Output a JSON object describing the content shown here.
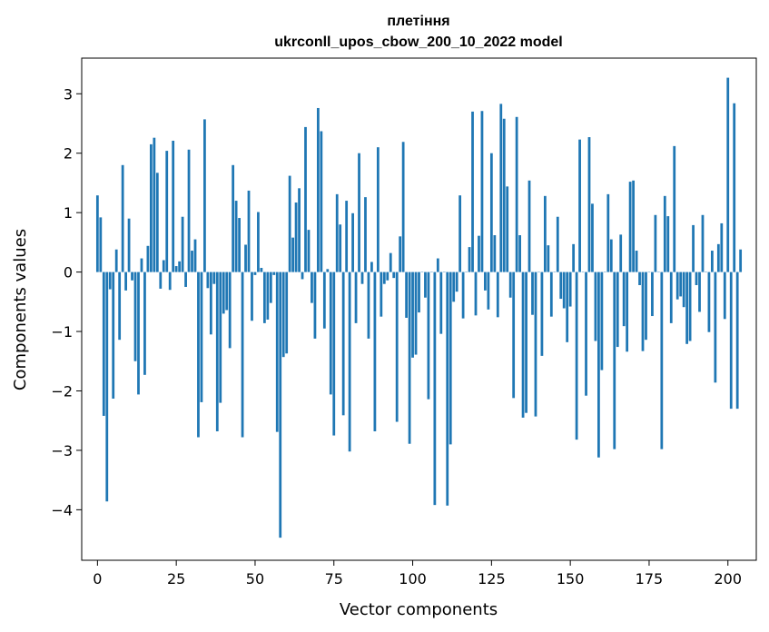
{
  "chart_data": {
    "type": "bar",
    "title_line1": "плетіння",
    "title_line2": "ukrconll_upos_cbow_200_10_2022 model",
    "xlabel": "Vector components",
    "ylabel": "Components values",
    "xlim": [
      -5,
      209
    ],
    "ylim": [
      -4.85,
      3.6
    ],
    "xticks": [
      0,
      25,
      50,
      75,
      100,
      125,
      150,
      175,
      200
    ],
    "yticks": [
      -4,
      -3,
      -2,
      -1,
      0,
      1,
      2,
      3
    ],
    "grid": false,
    "bar_color": "#1f77b4",
    "values": [
      1.29,
      0.92,
      -2.42,
      -3.86,
      -0.29,
      -2.13,
      0.38,
      -1.14,
      1.8,
      -0.31,
      0.9,
      -0.14,
      -1.5,
      -2.06,
      0.23,
      -1.73,
      0.44,
      2.15,
      2.26,
      1.67,
      -0.28,
      0.2,
      2.04,
      -0.3,
      2.21,
      0.1,
      0.18,
      0.93,
      -0.25,
      2.06,
      0.36,
      0.55,
      -2.78,
      -2.19,
      2.57,
      -0.27,
      -1.05,
      -0.2,
      -2.68,
      -2.2,
      -0.7,
      -0.64,
      -1.28,
      1.8,
      1.2,
      0.91,
      -2.78,
      0.46,
      1.37,
      -0.82,
      -0.05,
      1.01,
      0.07,
      -0.86,
      -0.8,
      -0.52,
      -0.05,
      -2.69,
      -4.47,
      -1.43,
      -1.37,
      1.62,
      0.58,
      1.17,
      1.41,
      -0.12,
      2.44,
      0.71,
      -0.52,
      -1.12,
      2.76,
      2.37,
      -0.95,
      0.05,
      -2.06,
      -2.75,
      1.31,
      0.8,
      -2.41,
      1.2,
      -3.02,
      0.99,
      -0.86,
      2.0,
      -0.2,
      1.26,
      -1.12,
      0.17,
      -2.68,
      2.1,
      -0.75,
      -0.2,
      -0.14,
      0.32,
      -0.1,
      -2.52,
      0.6,
      2.19,
      -0.77,
      -2.89,
      -1.44,
      -1.39,
      -0.68,
      0.0,
      -0.43,
      -2.14,
      0.0,
      -3.92,
      0.23,
      -1.04,
      0.0,
      -3.93,
      -2.9,
      -0.5,
      -0.33,
      1.29,
      -0.78,
      0.0,
      0.42,
      2.7,
      -0.73,
      0.61,
      2.71,
      -0.31,
      -0.63,
      2.0,
      0.62,
      -0.76,
      2.83,
      2.58,
      1.44,
      -0.43,
      -2.12,
      2.61,
      0.62,
      -2.45,
      -2.37,
      1.54,
      -0.72,
      -2.43,
      0.0,
      -1.41,
      1.28,
      0.45,
      -0.75,
      0.0,
      0.93,
      -0.45,
      -0.61,
      -1.18,
      -0.58,
      0.47,
      -2.82,
      2.23,
      0.0,
      -2.08,
      2.27,
      1.15,
      -1.16,
      -3.12,
      -1.65,
      0.0,
      1.31,
      0.55,
      -2.98,
      -1.26,
      0.63,
      -0.91,
      -1.34,
      1.52,
      1.54,
      0.36,
      -0.22,
      -1.33,
      -1.14,
      0.0,
      -0.74,
      0.96,
      0.0,
      -2.98,
      1.28,
      0.94,
      -0.86,
      2.12,
      -0.46,
      -0.41,
      -0.59,
      -1.21,
      -1.16,
      0.79,
      -0.22,
      -0.67,
      0.96,
      0.0,
      -1.01,
      0.36,
      -1.86,
      0.47,
      0.82,
      -0.79,
      3.27,
      -2.3,
      2.84,
      -2.3,
      0.38
    ]
  }
}
